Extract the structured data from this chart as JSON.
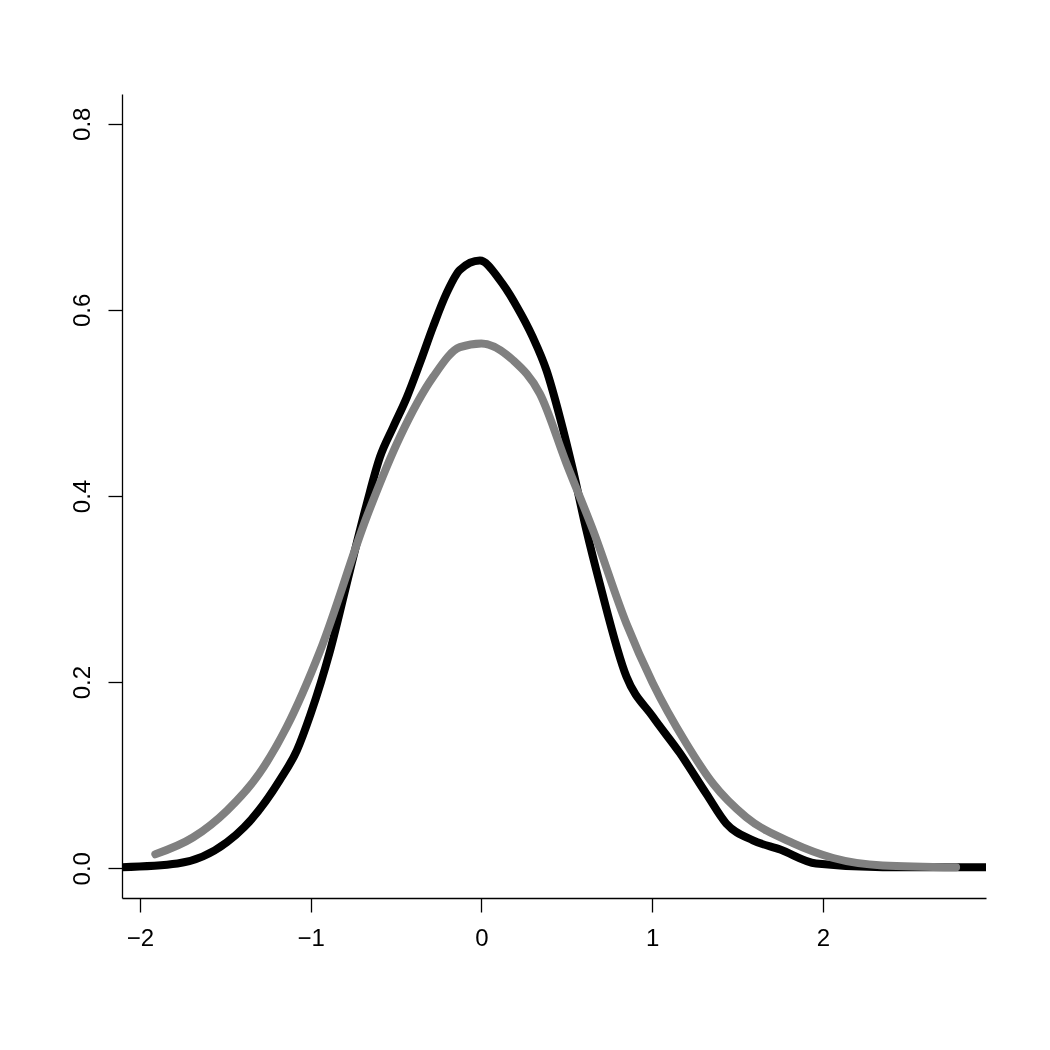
{
  "chart_data": {
    "type": "line",
    "xlim": [
      -2.105,
      2.955
    ],
    "xticks": [
      {
        "value": -2,
        "label": "−2"
      },
      {
        "value": -1,
        "label": "−1"
      },
      0,
      1,
      2
    ],
    "ylim": [
      -0.032,
      0.832
    ],
    "yticks": [
      {
        "value": 0,
        "label": "0.0"
      },
      0.2,
      0.4,
      0.6,
      0.8
    ],
    "series": [
      {
        "color": "#000000",
        "x": [
          -2.105,
          -1.78,
          -1.49,
          -1.39,
          -1.18,
          -1.08,
          -1.0,
          -0.886,
          -0.77,
          -0.671,
          -0.594,
          -0.517,
          -0.437,
          -0.36,
          -0.283,
          -0.204,
          -0.126,
          -0.009,
          0.108,
          0.206,
          0.3,
          0.381,
          0.459,
          0.536,
          0.615,
          0.693,
          0.849,
          1.003,
          1.161,
          1.317,
          1.434,
          1.59,
          1.75,
          1.96,
          2.35,
          2.955
        ],
        "values": [
          0.001,
          0.005,
          0.028,
          0.044,
          0.095,
          0.127,
          0.166,
          0.234,
          0.32,
          0.392,
          0.442,
          0.474,
          0.506,
          0.543,
          0.582,
          0.618,
          0.643,
          0.653,
          0.632,
          0.604,
          0.571,
          0.535,
          0.485,
          0.428,
          0.363,
          0.306,
          0.206,
          0.163,
          0.124,
          0.08,
          0.048,
          0.03,
          0.02,
          0.005,
          0.001,
          0.001
        ]
      },
      {
        "color": "#808080",
        "x": [
          -1.91,
          -1.69,
          -1.49,
          -1.3,
          -1.14,
          -0.944,
          -0.671,
          -0.476,
          -0.283,
          -0.126,
          0.0,
          0.185,
          0.342,
          0.498,
          0.654,
          0.849,
          1.003,
          1.2,
          1.356,
          1.55,
          1.824,
          2.06,
          2.35,
          2.78
        ],
        "values": [
          0.015,
          0.033,
          0.062,
          0.102,
          0.152,
          0.234,
          0.378,
          0.464,
          0.528,
          0.56,
          0.564,
          0.546,
          0.51,
          0.435,
          0.363,
          0.263,
          0.199,
          0.134,
          0.091,
          0.055,
          0.027,
          0.011,
          0.003,
          0.001
        ]
      }
    ]
  }
}
